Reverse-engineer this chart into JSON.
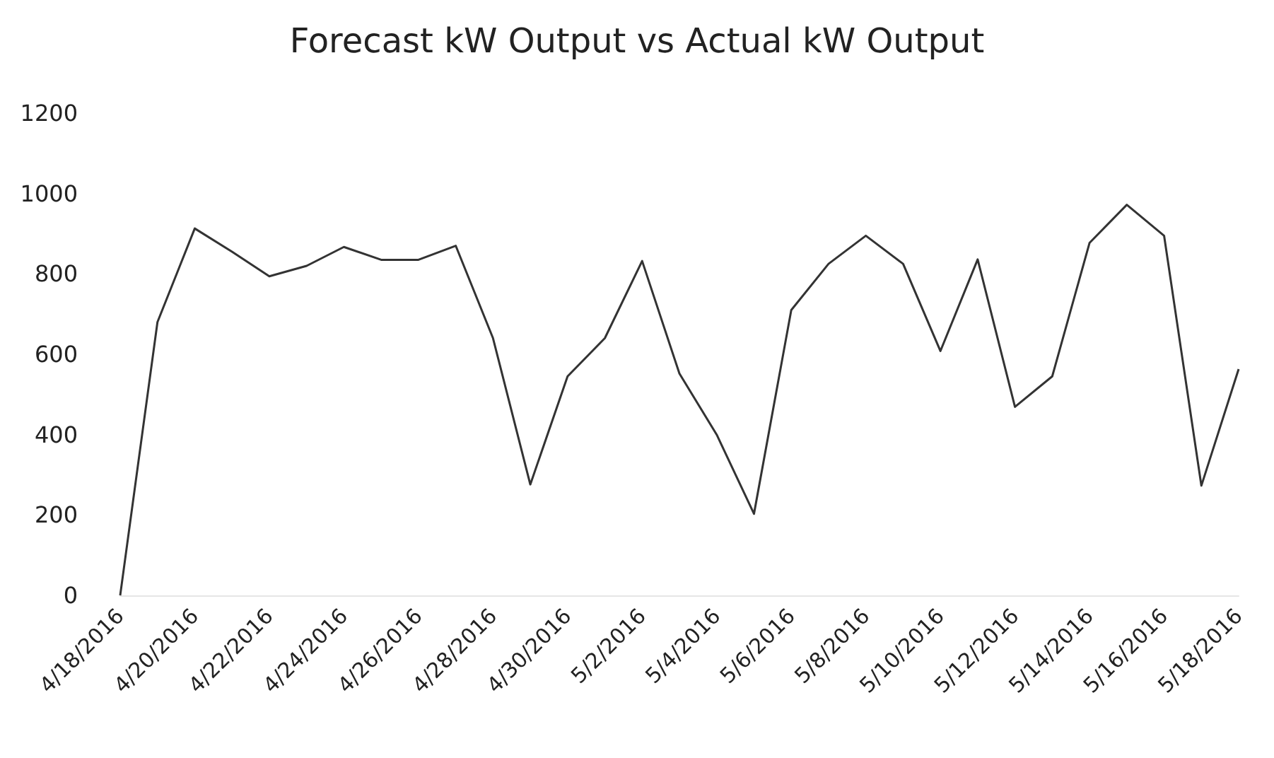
{
  "chart_data": {
    "type": "line",
    "title": "Forecast kW Output vs Actual kW Output",
    "categories": [
      "4/18/2016",
      null,
      "4/20/2016",
      null,
      "4/22/2016",
      null,
      "4/24/2016",
      null,
      "4/26/2016",
      null,
      "4/28/2016",
      null,
      "4/30/2016",
      null,
      "5/2/2016",
      null,
      "5/4/2016",
      null,
      "5/6/2016",
      null,
      "5/8/2016",
      null,
      "5/10/2016",
      null,
      "5/12/2016",
      null,
      "5/14/2016",
      null,
      "5/16/2016",
      null,
      "5/18/2016"
    ],
    "series": [
      {
        "color": "#333333",
        "values": [
          0,
          680,
          913,
          855,
          794,
          820,
          867,
          835,
          835,
          870,
          640,
          276,
          545,
          640,
          832,
          552,
          400,
          203,
          710,
          825,
          895,
          825,
          608,
          836,
          469,
          545,
          877,
          972,
          895,
          273,
          563
        ]
      }
    ],
    "ylim": [
      0,
      1200
    ],
    "yticks": [
      0,
      200,
      400,
      600,
      800,
      1000,
      1200
    ],
    "grid": false,
    "marker": "none",
    "line_style": "solid"
  }
}
